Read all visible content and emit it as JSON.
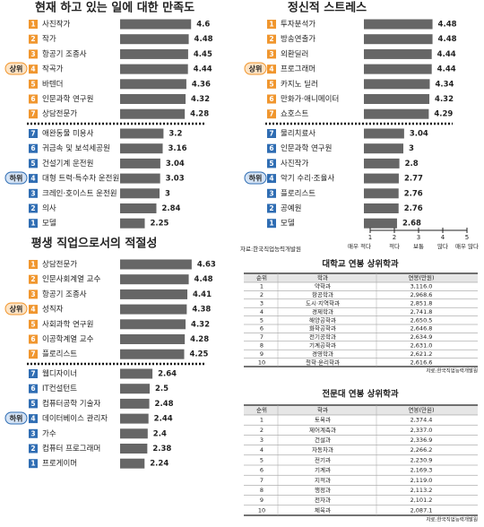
{
  "chart_data": [
    {
      "type": "bar",
      "title": "현재 하고 있는 일에 대한 만족도",
      "xlim": [
        1,
        5
      ],
      "bar_color": "#666666",
      "groups": [
        {
          "label": "상위",
          "color": "#f0962e",
          "ranks": [
            1,
            2,
            3,
            4,
            5,
            6,
            7
          ],
          "categories": [
            "사진작가",
            "작가",
            "항공기 조종사",
            "작곡가",
            "바텐더",
            "인문과학 연구원",
            "상담전문가"
          ],
          "values": [
            4.6,
            4.48,
            4.45,
            4.44,
            4.36,
            4.32,
            4.28
          ]
        },
        {
          "label": "하위",
          "color": "#2f6db3",
          "ranks": [
            7,
            6,
            5,
            4,
            3,
            2,
            1
          ],
          "categories": [
            "애완동물 미용사",
            "귀금속 및 보석세공원",
            "건설기계 운전원",
            "대형 트럭·특수차 운전원",
            "크레인·호이스트 운전원",
            "의사",
            "모델"
          ],
          "values": [
            3.2,
            3.16,
            3.04,
            3.03,
            3,
            2.84,
            2.25
          ]
        }
      ]
    },
    {
      "type": "bar",
      "title": "정신적 스트레스",
      "xlim": [
        1,
        5
      ],
      "bar_color": "#666666",
      "groups": [
        {
          "label": "상위",
          "color": "#f0962e",
          "ranks": [
            1,
            2,
            3,
            4,
            5,
            6,
            7
          ],
          "categories": [
            "투자분석가",
            "방송연출가",
            "외환딜러",
            "프로그래머",
            "카지노 딜러",
            "만화가·애니메이터",
            "쇼호스트"
          ],
          "values": [
            4.48,
            4.48,
            4.44,
            4.44,
            4.34,
            4.32,
            4.29
          ]
        },
        {
          "label": "하위",
          "color": "#2f6db3",
          "ranks": [
            7,
            6,
            5,
            4,
            3,
            2,
            1
          ],
          "categories": [
            "물리치료사",
            "인문과학 연구원",
            "사진작가",
            "악기 수리·조율사",
            "플로리스트",
            "공예원",
            "모델"
          ],
          "values": [
            3.04,
            3,
            2.8,
            2.77,
            2.76,
            2.76,
            2.68
          ]
        }
      ]
    },
    {
      "type": "bar",
      "title": "평생 직업으로서의 적절성",
      "xlim": [
        1,
        5
      ],
      "bar_color": "#666666",
      "groups": [
        {
          "label": "상위",
          "color": "#f0962e",
          "ranks": [
            1,
            2,
            3,
            4,
            5,
            6,
            7
          ],
          "categories": [
            "상담전문가",
            "인문사회계열 교수",
            "항공기 조종사",
            "성직자",
            "사회과학 연구원",
            "이공학계열 교수",
            "플로리스트"
          ],
          "values": [
            4.63,
            4.48,
            4.41,
            4.38,
            4.32,
            4.28,
            4.25
          ]
        },
        {
          "label": "하위",
          "color": "#2f6db3",
          "ranks": [
            7,
            6,
            5,
            4,
            3,
            2,
            1
          ],
          "categories": [
            "웹디자이너",
            "IT컨설턴트",
            "컴퓨터공학 기술자",
            "데이터베이스 관리자",
            "가수",
            "컴퓨터 프로그래머",
            "프로게이머"
          ],
          "values": [
            2.64,
            2.5,
            2.48,
            2.44,
            2.4,
            2.38,
            2.24
          ]
        }
      ]
    }
  ],
  "scale": {
    "ticks": [
      1,
      2,
      3,
      4,
      5
    ],
    "labels": [
      "매우 적다",
      "적다",
      "보통",
      "많다",
      "매우 많다"
    ]
  },
  "source": "자료:한국직업능력개발원",
  "tables": [
    {
      "title": "대학교 연봉 상위학과",
      "columns": [
        "순위",
        "학과",
        "연봉(만원)"
      ],
      "rows": [
        [
          1,
          "약학과",
          "3,116.0"
        ],
        [
          2,
          "항공학과",
          "2,968.6"
        ],
        [
          3,
          "도시·지역학과",
          "2,851.8"
        ],
        [
          4,
          "경제학과",
          "2,741.8"
        ],
        [
          5,
          "해양공학과",
          "2,650.5"
        ],
        [
          6,
          "화학공학과",
          "2,646.8"
        ],
        [
          7,
          "전기공학과",
          "2,634.9"
        ],
        [
          8,
          "기계공학과",
          "2,631.0"
        ],
        [
          9,
          "경영학과",
          "2,621.2"
        ],
        [
          10,
          "철학·윤리학과",
          "2,616.6"
        ]
      ],
      "source": "자료:한국직업능력개발원"
    },
    {
      "title": "전문대 연봉 상위학과",
      "columns": [
        "순위",
        "학과",
        "연봉(만원)"
      ],
      "rows": [
        [
          1,
          "토목과",
          "2,374.4"
        ],
        [
          2,
          "제어계측과",
          "2,337.0"
        ],
        [
          3,
          "건설과",
          "2,336.9"
        ],
        [
          4,
          "자동차과",
          "2,266.2"
        ],
        [
          5,
          "전기과",
          "2,230.9"
        ],
        [
          6,
          "기계과",
          "2,169.3"
        ],
        [
          7,
          "지적과",
          "2,119.0"
        ],
        [
          8,
          "행정과",
          "2,113.2"
        ],
        [
          9,
          "전자과",
          "2,101.2"
        ],
        [
          10,
          "체육과",
          "2,087.1"
        ]
      ],
      "source": "자료:한국직업능력개발원"
    }
  ]
}
